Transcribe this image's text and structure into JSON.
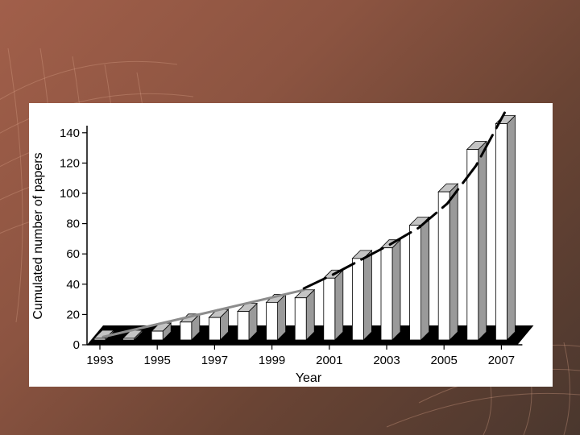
{
  "slide": {
    "background_colors": [
      "#a15f4a",
      "#6a4434",
      "#4a372e"
    ]
  },
  "chart_data": {
    "type": "bar",
    "title": "",
    "xlabel": "Year",
    "ylabel": "Cumulated number of papers",
    "categories": [
      "1993",
      "1994",
      "1995",
      "1996",
      "1997",
      "1998",
      "1999",
      "2000",
      "2001",
      "2002",
      "2003",
      "2004",
      "2005",
      "2006",
      "2007"
    ],
    "x_tick_labels": [
      "1993",
      "1995",
      "1997",
      "1999",
      "2001",
      "2003",
      "2005",
      "2007"
    ],
    "y_tick_labels": [
      "0",
      "20",
      "40",
      "60",
      "80",
      "100",
      "120",
      "140"
    ],
    "ylim": [
      0,
      150
    ],
    "series": [
      {
        "values": [
          2,
          4,
          9,
          15,
          18,
          22,
          28,
          31,
          44,
          57,
          64,
          79,
          101,
          129,
          146
        ]
      }
    ],
    "trend_lines": [
      {
        "style": "solid-gray",
        "points": [
          [
            1993,
            2
          ],
          [
            2000,
            33
          ]
        ]
      },
      {
        "style": "dashed-black",
        "points": [
          [
            2000,
            34
          ],
          [
            2001,
            43
          ],
          [
            2002,
            53
          ],
          [
            2003,
            63
          ],
          [
            2004,
            74
          ],
          [
            2005,
            90
          ],
          [
            2006,
            115
          ],
          [
            2007,
            150
          ]
        ]
      }
    ],
    "bar_colors": {
      "front": "#ffffff",
      "side": "#9a9a9a",
      "top": "#c4c4c4",
      "floor": "#000000"
    },
    "grid": false,
    "legend": "none"
  }
}
